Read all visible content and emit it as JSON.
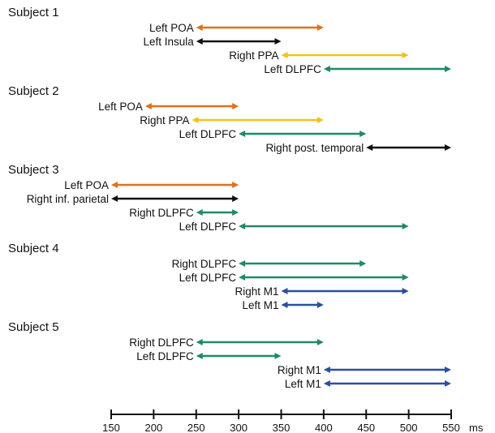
{
  "chart_data": {
    "type": "interval",
    "colors": {
      "orange": "#e0701f",
      "black": "#111111",
      "yellow": "#f2c21b",
      "green": "#1f8a66",
      "blue": "#2b4f9e"
    },
    "subjects": [
      {
        "title": "Subject 1",
        "rows": [
          {
            "label": "Left POA",
            "start": 250,
            "end": 400,
            "color": "orange"
          },
          {
            "label": "Left Insula",
            "start": 250,
            "end": 350,
            "color": "black"
          },
          {
            "label": "Right PPA",
            "start": 350,
            "end": 500,
            "color": "yellow"
          },
          {
            "label": "Left DLPFC",
            "start": 400,
            "end": 550,
            "color": "green"
          }
        ]
      },
      {
        "title": "Subject 2",
        "rows": [
          {
            "label": "Left POA",
            "start": 190,
            "end": 300,
            "color": "orange"
          },
          {
            "label": "Right PPA",
            "start": 245,
            "end": 400,
            "color": "yellow"
          },
          {
            "label": "Left DLPFC",
            "start": 300,
            "end": 450,
            "color": "green"
          },
          {
            "label": "Right post. temporal",
            "start": 450,
            "end": 550,
            "color": "black"
          }
        ]
      },
      {
        "title": "Subject 3",
        "rows": [
          {
            "label": "Left POA",
            "start": 150,
            "end": 300,
            "color": "orange"
          },
          {
            "label": "Right inf. parietal",
            "start": 150,
            "end": 300,
            "color": "black"
          },
          {
            "label": "Right DLPFC",
            "start": 250,
            "end": 300,
            "color": "green"
          },
          {
            "label": "Left DLPFC",
            "start": 300,
            "end": 500,
            "color": "green"
          }
        ]
      },
      {
        "title": "Subject 4",
        "rows": [
          {
            "label": "Right DLPFC",
            "start": 300,
            "end": 450,
            "color": "green"
          },
          {
            "label": "Left DLPFC",
            "start": 300,
            "end": 500,
            "color": "green"
          },
          {
            "label": "Right M1",
            "start": 350,
            "end": 500,
            "color": "blue"
          },
          {
            "label": "Left M1",
            "start": 350,
            "end": 400,
            "color": "blue"
          }
        ]
      },
      {
        "title": "Subject 5",
        "rows": [
          {
            "label": "Right DLPFC",
            "start": 250,
            "end": 400,
            "color": "green"
          },
          {
            "label": "Left DLPFC",
            "start": 250,
            "end": 350,
            "color": "green"
          },
          {
            "label": "Right M1",
            "start": 400,
            "end": 550,
            "color": "blue"
          },
          {
            "label": "Left M1",
            "start": 400,
            "end": 550,
            "color": "blue"
          }
        ]
      }
    ],
    "axis": {
      "min": 150,
      "max": 550,
      "ticks": [
        150,
        200,
        250,
        300,
        350,
        400,
        450,
        500,
        550
      ],
      "unit": "ms"
    }
  }
}
